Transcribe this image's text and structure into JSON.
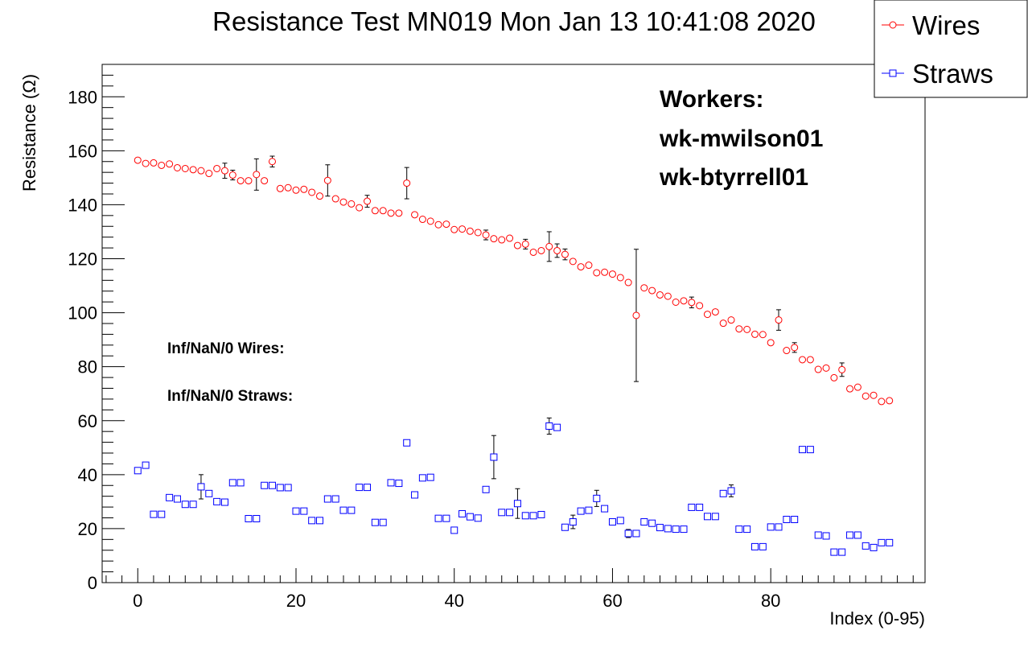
{
  "chart_data": {
    "type": "scatter",
    "title": "Resistance Test MN019 Mon Jan 13 10:41:08 2020",
    "xlabel": "Index (0-95)",
    "ylabel": "Resistance (Ω)",
    "xlim": [
      -4.5,
      99.5
    ],
    "ylim": [
      0,
      192
    ],
    "x_ticks": [
      0,
      20,
      40,
      60,
      80
    ],
    "y_ticks": [
      0,
      20,
      40,
      60,
      80,
      100,
      120,
      140,
      160,
      180
    ],
    "grid": false,
    "legend_position": "top-right",
    "annotations": {
      "workers_heading": "Workers:",
      "workers": [
        "wk-mwilson01",
        "wk-btyrrell01"
      ],
      "inf_wires": "Inf/NaN/0 Wires:",
      "inf_straws": "Inf/NaN/0 Straws:"
    },
    "series": [
      {
        "name": "Wires",
        "marker": "circle",
        "color": "#ff0000",
        "x": [
          0,
          1,
          2,
          3,
          4,
          5,
          6,
          7,
          8,
          9,
          10,
          11,
          12,
          13,
          14,
          15,
          16,
          17,
          18,
          19,
          20,
          21,
          22,
          23,
          24,
          25,
          26,
          27,
          28,
          29,
          30,
          31,
          32,
          33,
          34,
          35,
          36,
          37,
          38,
          39,
          40,
          41,
          42,
          43,
          44,
          45,
          46,
          47,
          48,
          49,
          50,
          51,
          52,
          53,
          54,
          55,
          56,
          57,
          58,
          59,
          60,
          61,
          62,
          63,
          64,
          65,
          66,
          67,
          68,
          69,
          70,
          71,
          72,
          73,
          74,
          75,
          76,
          77,
          78,
          79,
          80,
          81,
          82,
          83,
          84,
          85,
          86,
          87,
          88,
          89,
          90,
          91,
          92,
          93,
          94,
          95
        ],
        "y": [
          156.5,
          155.3,
          155.5,
          154.6,
          155.1,
          153.7,
          153.4,
          153.0,
          152.6,
          151.6,
          153.4,
          152.6,
          151.0,
          148.9,
          148.9,
          151.2,
          148.9,
          156.0,
          146.0,
          146.3,
          145.4,
          145.7,
          144.6,
          143.2,
          149.0,
          142.2,
          141.0,
          140.3,
          138.9,
          141.3,
          137.8,
          137.8,
          136.9,
          136.9,
          148.0,
          136.3,
          134.6,
          133.9,
          132.6,
          132.8,
          130.8,
          131.0,
          130.2,
          129.7,
          128.8,
          127.4,
          127.0,
          127.6,
          124.9,
          125.4,
          122.4,
          123.0,
          124.5,
          123.0,
          121.6,
          119.0,
          117.0,
          117.6,
          114.8,
          115.0,
          114.3,
          113.0,
          111.2,
          99.0,
          109.2,
          108.2,
          106.6,
          106.1,
          103.9,
          104.4,
          103.8,
          102.6,
          99.4,
          100.3,
          96.1,
          97.3,
          94.0,
          93.8,
          92.0,
          91.9,
          88.9,
          97.3,
          86.0,
          87.1,
          82.6,
          82.6,
          79.0,
          79.5,
          75.9,
          78.9,
          71.8,
          72.4,
          69.1,
          69.4,
          67.1,
          67.4
        ],
        "err": [
          0,
          0,
          0,
          0,
          0,
          0,
          0,
          0,
          0,
          0,
          0,
          2.8,
          1.8,
          0,
          0,
          5.8,
          0,
          2.0,
          0,
          0,
          0,
          0,
          0,
          0,
          5.8,
          0,
          0,
          0,
          0,
          2.2,
          0,
          0,
          0,
          0,
          5.8,
          0,
          0,
          0,
          0,
          0,
          0,
          0,
          0,
          0,
          1.8,
          0,
          0,
          0,
          0,
          1.8,
          0,
          0,
          5.5,
          2.5,
          2.0,
          0,
          0,
          0,
          0,
          0,
          0,
          0,
          0,
          24.5,
          0,
          0,
          0,
          0,
          0,
          0,
          2.0,
          0,
          0,
          0,
          0,
          0,
          0,
          0,
          0,
          0,
          0,
          3.8,
          0,
          1.8,
          0,
          0,
          0,
          0,
          0,
          2.5,
          0,
          0,
          0,
          0,
          0,
          0
        ]
      },
      {
        "name": "Straws",
        "marker": "square",
        "color": "#0000ff",
        "x": [
          0,
          1,
          2,
          3,
          4,
          5,
          6,
          7,
          8,
          9,
          10,
          11,
          12,
          13,
          14,
          15,
          16,
          17,
          18,
          19,
          20,
          21,
          22,
          23,
          24,
          25,
          26,
          27,
          28,
          29,
          30,
          31,
          32,
          33,
          34,
          35,
          36,
          37,
          38,
          39,
          40,
          41,
          42,
          43,
          44,
          45,
          46,
          47,
          48,
          49,
          50,
          51,
          52,
          53,
          54,
          55,
          56,
          57,
          58,
          59,
          60,
          61,
          62,
          63,
          64,
          65,
          66,
          67,
          68,
          69,
          70,
          71,
          72,
          73,
          74,
          75,
          76,
          77,
          78,
          79,
          80,
          81,
          82,
          83,
          84,
          85,
          86,
          87,
          88,
          89,
          90,
          91,
          92,
          93,
          94,
          95
        ],
        "y": [
          41.5,
          43.5,
          25.3,
          25.3,
          31.5,
          31.0,
          29.0,
          29.0,
          35.5,
          33.0,
          30.0,
          29.8,
          37.0,
          37.0,
          23.7,
          23.7,
          36.0,
          36.0,
          35.2,
          35.2,
          26.5,
          26.5,
          23.0,
          23.0,
          31.0,
          31.0,
          26.8,
          26.8,
          35.3,
          35.3,
          22.3,
          22.3,
          37.0,
          36.8,
          51.8,
          32.5,
          38.8,
          39.0,
          23.8,
          23.8,
          19.4,
          25.5,
          24.4,
          23.9,
          34.5,
          46.5,
          26.0,
          26.0,
          29.3,
          24.8,
          24.8,
          25.2,
          58.0,
          57.5,
          20.5,
          22.5,
          26.5,
          26.8,
          31.2,
          27.4,
          22.5,
          23.0,
          18.2,
          18.2,
          22.5,
          22.0,
          20.4,
          20.0,
          19.8,
          19.8,
          27.9,
          27.9,
          24.5,
          24.5,
          33.0,
          34.0,
          19.8,
          19.8,
          13.3,
          13.3,
          20.6,
          20.6,
          23.4,
          23.4,
          49.3,
          49.3,
          17.6,
          17.3,
          11.3,
          11.3,
          17.6,
          17.6,
          13.6,
          13.0,
          14.8,
          14.8
        ],
        "err": [
          0,
          0,
          0,
          0,
          0,
          0,
          0,
          0,
          4.5,
          0,
          0,
          0,
          0,
          0,
          0,
          0,
          0,
          0,
          0,
          0,
          0,
          0,
          0,
          0,
          0,
          0,
          0,
          0,
          0,
          0,
          0,
          0,
          0,
          0,
          0,
          0,
          0,
          0,
          0,
          0,
          0,
          0,
          0,
          0,
          0,
          8.0,
          0,
          0,
          5.5,
          0,
          0,
          0,
          3.0,
          0,
          0,
          2.5,
          0,
          0,
          3.0,
          0,
          0,
          0,
          1.5,
          0,
          0,
          0,
          0,
          0,
          0,
          0,
          0,
          0,
          0,
          0,
          0,
          2.2,
          0,
          0,
          0,
          0,
          0,
          0,
          0,
          0,
          0,
          0,
          0,
          0,
          0,
          0,
          0,
          0,
          0,
          0,
          0,
          0
        ]
      }
    ]
  }
}
